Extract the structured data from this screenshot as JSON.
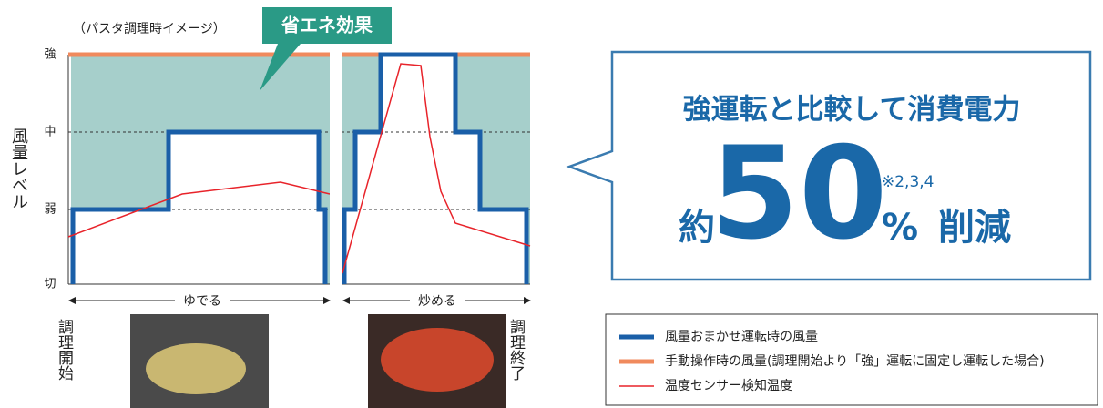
{
  "image_note": "（パスタ調理時イメージ）",
  "badge": "省エネ効果",
  "y_axis": {
    "label": "風量レベル",
    "levels": [
      "強",
      "中",
      "弱",
      "切"
    ]
  },
  "phases": [
    "ゆでる",
    "炒める"
  ],
  "start_label": "調理開始",
  "end_label": "調理終了",
  "message": {
    "line1": "強運転と比較して消費電力",
    "prefix": "約",
    "number": "50",
    "unit": "%",
    "note": "※2,3,4",
    "suffix": "削減"
  },
  "legend": [
    {
      "label": "風量おまかせ運転時の風量",
      "color": "#1a5fa8"
    },
    {
      "label": "手動操作時の風量(調理開始より「強」運転に固定し運転した場合)",
      "color": "#f08a5d"
    },
    {
      "label": "温度センサー検知温度",
      "color": "#e8232a"
    }
  ]
}
